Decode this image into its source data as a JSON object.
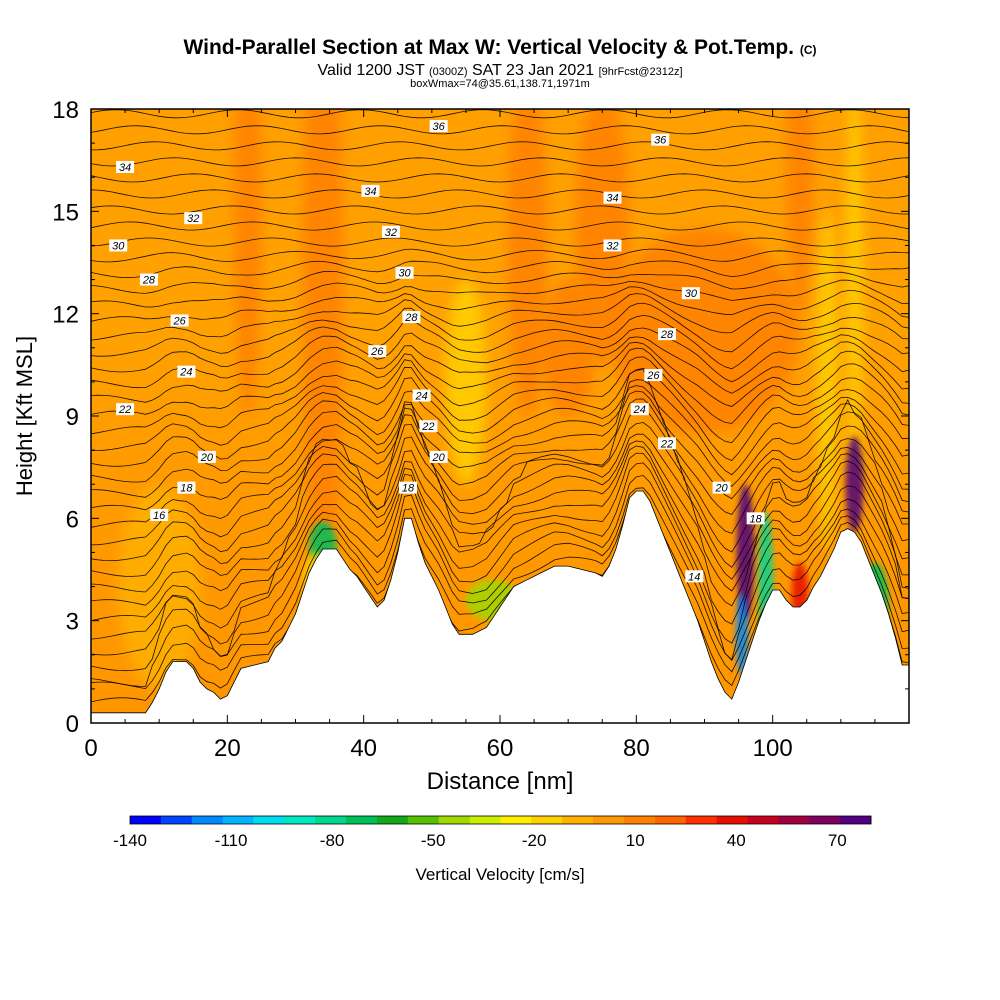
{
  "title": {
    "main": "Wind-Parallel Section at Max W: Vertical Velocity & Pot.Temp.",
    "copyright": "(C)",
    "valid_prefix": "Valid 1200 JST",
    "valid_utc": "(0300Z)",
    "valid_date": "SAT 23 Jan 2021",
    "forecast": "[9hrFcst@2312z]",
    "boxmax": "boxWmax=74@35.61,138.71,1971m"
  },
  "chart_data": {
    "type": "heatmap",
    "xlabel": "Distance [nm]",
    "ylabel": "Height [Kft MSL]",
    "xlim": [
      0,
      120
    ],
    "ylim": [
      0,
      18
    ],
    "xticks": [
      0,
      20,
      40,
      60,
      80,
      100
    ],
    "yticks": [
      0,
      3,
      6,
      9,
      12,
      15,
      18
    ],
    "colorbar": {
      "label": "Vertical Velocity [cm/s]",
      "ticks": [
        -140,
        -110,
        -80,
        -50,
        -20,
        10,
        40,
        70
      ],
      "range": [
        -140,
        80
      ],
      "colors": [
        "#0000ff",
        "#0044ff",
        "#0088ff",
        "#00b4ff",
        "#00dcf0",
        "#00e8c0",
        "#00d890",
        "#00c05a",
        "#12a81a",
        "#55c000",
        "#a0d800",
        "#ccee00",
        "#ffee00",
        "#ffd000",
        "#ffb000",
        "#ff9800",
        "#ff8000",
        "#ff6400",
        "#ff3000",
        "#e61000",
        "#c80020",
        "#a00040",
        "#800060",
        "#500080"
      ]
    },
    "terrain": [
      [
        0,
        0.3
      ],
      [
        5,
        0.3
      ],
      [
        8,
        0.3
      ],
      [
        9,
        0.6
      ],
      [
        10,
        1
      ],
      [
        11,
        1.5
      ],
      [
        12,
        1.8
      ],
      [
        14,
        1.8
      ],
      [
        15,
        1.6
      ],
      [
        16,
        1.2
      ],
      [
        17,
        1
      ],
      [
        18,
        0.9
      ],
      [
        19,
        0.7
      ],
      [
        20,
        0.8
      ],
      [
        21,
        1.2
      ],
      [
        22,
        1.6
      ],
      [
        24,
        1.7
      ],
      [
        26,
        1.8
      ],
      [
        27,
        2.2
      ],
      [
        28,
        2.4
      ],
      [
        29,
        2.8
      ],
      [
        30,
        3.2
      ],
      [
        31,
        3.8
      ],
      [
        32,
        4.4
      ],
      [
        33,
        4.8
      ],
      [
        34,
        5.1
      ],
      [
        35,
        5.1
      ],
      [
        36,
        5.1
      ],
      [
        37,
        4.8
      ],
      [
        38,
        4.5
      ],
      [
        39,
        4.3
      ],
      [
        40,
        4
      ],
      [
        41,
        3.7
      ],
      [
        42,
        3.4
      ],
      [
        43,
        3.6
      ],
      [
        44,
        4.2
      ],
      [
        45,
        5
      ],
      [
        46,
        6
      ],
      [
        47,
        6
      ],
      [
        48,
        5.3
      ],
      [
        49,
        4.7
      ],
      [
        50,
        4.3
      ],
      [
        51,
        3.9
      ],
      [
        52,
        3.4
      ],
      [
        53,
        2.9
      ],
      [
        54,
        2.6
      ],
      [
        56,
        2.6
      ],
      [
        58,
        2.8
      ],
      [
        59,
        3.1
      ],
      [
        60,
        3.4
      ],
      [
        61,
        3.7
      ],
      [
        62,
        4
      ],
      [
        64,
        4.2
      ],
      [
        66,
        4.4
      ],
      [
        68,
        4.6
      ],
      [
        70,
        4.6
      ],
      [
        72,
        4.5
      ],
      [
        74,
        4.4
      ],
      [
        75,
        4.3
      ],
      [
        76,
        4.6
      ],
      [
        77,
        5.1
      ],
      [
        78,
        5.8
      ],
      [
        79,
        6.6
      ],
      [
        80,
        6.8
      ],
      [
        81,
        6.8
      ],
      [
        82,
        6.5
      ],
      [
        83,
        6
      ],
      [
        84,
        5.5
      ],
      [
        85,
        5
      ],
      [
        86,
        4.5
      ],
      [
        87,
        4
      ],
      [
        88,
        3.5
      ],
      [
        89,
        3
      ],
      [
        90,
        2.4
      ],
      [
        91,
        1.8
      ],
      [
        92,
        1.3
      ],
      [
        93,
        0.9
      ],
      [
        94,
        0.7
      ],
      [
        95,
        1.2
      ],
      [
        96,
        1.8
      ],
      [
        97,
        2.4
      ],
      [
        98,
        3
      ],
      [
        99,
        3.5
      ],
      [
        100,
        3.9
      ],
      [
        101,
        3.9
      ],
      [
        102,
        3.6
      ],
      [
        103,
        3.4
      ],
      [
        104,
        3.4
      ],
      [
        105,
        3.6
      ],
      [
        106,
        4
      ],
      [
        107,
        4.3
      ],
      [
        108,
        4.7
      ],
      [
        109,
        5.1
      ],
      [
        110,
        5.6
      ],
      [
        111,
        5.7
      ],
      [
        112,
        5.6
      ],
      [
        113,
        5.3
      ],
      [
        114,
        4.8
      ],
      [
        115,
        4.3
      ],
      [
        116,
        3.8
      ],
      [
        117,
        3.2
      ],
      [
        118,
        2.5
      ],
      [
        119,
        1.7
      ],
      [
        120,
        1.7
      ]
    ],
    "theta_labels": [
      {
        "x": 5,
        "y": 16.3,
        "v": "34"
      },
      {
        "x": 15,
        "y": 14.8,
        "v": "32"
      },
      {
        "x": 4,
        "y": 14,
        "v": "30"
      },
      {
        "x": 8.5,
        "y": 13,
        "v": "28"
      },
      {
        "x": 13,
        "y": 11.8,
        "v": "26"
      },
      {
        "x": 14,
        "y": 10.3,
        "v": "24"
      },
      {
        "x": 5,
        "y": 9.2,
        "v": "22"
      },
      {
        "x": 17,
        "y": 7.8,
        "v": "20"
      },
      {
        "x": 14,
        "y": 6.9,
        "v": "18"
      },
      {
        "x": 10,
        "y": 6.1,
        "v": "16"
      },
      {
        "x": 51,
        "y": 17.5,
        "v": "36"
      },
      {
        "x": 41,
        "y": 15.6,
        "v": "34"
      },
      {
        "x": 44,
        "y": 14.4,
        "v": "32"
      },
      {
        "x": 46,
        "y": 13.2,
        "v": "30"
      },
      {
        "x": 47,
        "y": 11.9,
        "v": "28"
      },
      {
        "x": 42,
        "y": 10.9,
        "v": "26"
      },
      {
        "x": 48.5,
        "y": 9.6,
        "v": "24"
      },
      {
        "x": 49.5,
        "y": 8.7,
        "v": "22"
      },
      {
        "x": 51,
        "y": 7.8,
        "v": "20"
      },
      {
        "x": 46.5,
        "y": 6.9,
        "v": "18"
      },
      {
        "x": 83.5,
        "y": 17.1,
        "v": "36"
      },
      {
        "x": 76.5,
        "y": 15.4,
        "v": "34"
      },
      {
        "x": 76.5,
        "y": 14,
        "v": "32"
      },
      {
        "x": 88,
        "y": 12.6,
        "v": "30"
      },
      {
        "x": 84.5,
        "y": 11.4,
        "v": "28"
      },
      {
        "x": 82.5,
        "y": 10.2,
        "v": "26"
      },
      {
        "x": 80.5,
        "y": 9.2,
        "v": "24"
      },
      {
        "x": 84.5,
        "y": 8.2,
        "v": "22"
      },
      {
        "x": 92.5,
        "y": 6.9,
        "v": "20"
      },
      {
        "x": 97.5,
        "y": 6,
        "v": "18"
      },
      {
        "x": 88.5,
        "y": 4.3,
        "v": "14"
      }
    ]
  }
}
